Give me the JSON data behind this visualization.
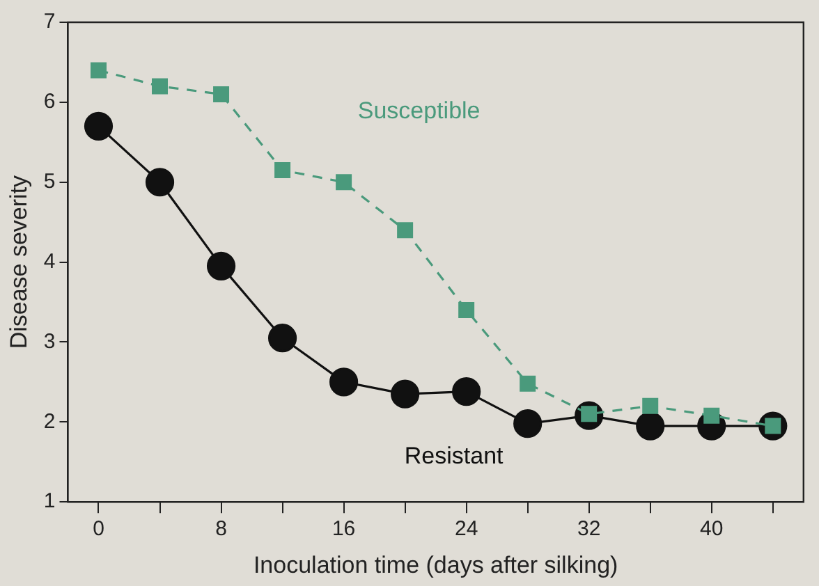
{
  "chart_data": {
    "type": "line",
    "xlabel": "Inoculation time (days after silking)",
    "ylabel": "Disease severity",
    "x": [
      0,
      4,
      8,
      12,
      16,
      20,
      24,
      28,
      32,
      36,
      40,
      44
    ],
    "xlim": [
      -2,
      46
    ],
    "xticks": [
      0,
      {
        "value": 4,
        "label": null
      },
      8,
      {
        "value": 12,
        "label": null
      },
      16,
      {
        "value": 20,
        "label": null
      },
      24,
      {
        "value": 28,
        "label": null
      },
      32,
      {
        "value": 36,
        "label": null
      },
      40,
      {
        "value": 44,
        "label": null
      }
    ],
    "ylim": [
      1,
      7
    ],
    "yticks": [
      1,
      2,
      3,
      4,
      5,
      6,
      7
    ],
    "grid": false,
    "legend": false,
    "series": [
      {
        "name": "Susceptible",
        "color": "#4a9a7c",
        "marker": "square",
        "line_style": "dashed",
        "values": [
          6.4,
          6.2,
          6.1,
          5.15,
          5.0,
          4.4,
          3.4,
          2.48,
          2.1,
          2.2,
          2.08,
          1.95
        ]
      },
      {
        "name": "Resistant",
        "color": "#111111",
        "marker": "circle",
        "line_style": "solid",
        "values": [
          5.7,
          5.0,
          3.95,
          3.05,
          2.5,
          2.35,
          2.38,
          1.98,
          2.08,
          1.95,
          1.95,
          1.95
        ]
      }
    ]
  }
}
